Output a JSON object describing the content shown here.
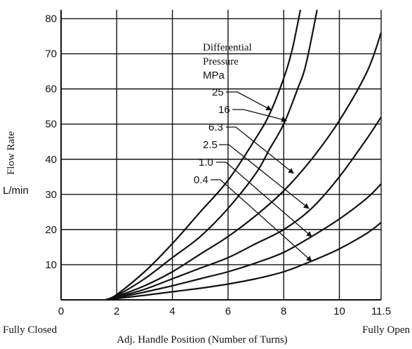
{
  "chart_data": {
    "type": "line",
    "xlabel": "Adj. Handle Position (Number of Turns)",
    "ylabel": "Flow Rate",
    "yunit": "L/min",
    "xlim": [
      0,
      11.5
    ],
    "ylim": [
      0,
      82
    ],
    "x_ticks": [
      "0",
      "2",
      "4",
      "6",
      "8",
      "10",
      "11.5"
    ],
    "y_ticks": [
      "10",
      "20",
      "30",
      "40",
      "50",
      "60",
      "70",
      "80"
    ],
    "x_tick_values": [
      0,
      2,
      4,
      6,
      8,
      10,
      11.5
    ],
    "y_tick_values": [
      10,
      20,
      30,
      40,
      50,
      60,
      70,
      80
    ],
    "grid": true,
    "x_end_labels": {
      "left": "Fully Closed",
      "right": "Fully Open"
    },
    "legend_title": [
      "Differential",
      "Pressure",
      "MPa"
    ],
    "series": [
      {
        "name": "25",
        "x": [
          1.6,
          2,
          3,
          4,
          5,
          6,
          7,
          7.5,
          8,
          8.3,
          8.6
        ],
        "y": [
          0,
          1.5,
          8,
          16,
          25,
          34,
          46,
          53,
          63,
          71,
          82.5
        ]
      },
      {
        "name": "16",
        "x": [
          1.6,
          2,
          3,
          4,
          5,
          6,
          7,
          7.5,
          8,
          8.5,
          8.8,
          9.2
        ],
        "y": [
          0,
          1.2,
          6,
          12,
          18,
          26,
          36,
          43,
          50,
          60,
          67,
          82.5
        ]
      },
      {
        "name": "6.3",
        "x": [
          1.6,
          2,
          3,
          4,
          5,
          6,
          7,
          8,
          9,
          10,
          11,
          11.5
        ],
        "y": [
          0,
          1,
          4,
          8,
          13,
          18,
          24,
          31,
          40,
          51,
          65,
          76
        ]
      },
      {
        "name": "2.5",
        "x": [
          1.6,
          2,
          3,
          4,
          5,
          6,
          7,
          8,
          9,
          10,
          11,
          11.5
        ],
        "y": [
          0,
          0.8,
          3,
          6,
          9,
          12,
          16,
          20,
          26,
          35,
          46,
          52
        ]
      },
      {
        "name": "1.0",
        "x": [
          1.6,
          2,
          3,
          4,
          5,
          6,
          7,
          8,
          9,
          10,
          11,
          11.5
        ],
        "y": [
          0,
          0.6,
          2.2,
          4,
          6,
          8,
          10.5,
          13.5,
          18,
          23,
          29,
          33
        ]
      },
      {
        "name": "0.4",
        "x": [
          1.6,
          2,
          3,
          4,
          5,
          6,
          7,
          8,
          9,
          10,
          11,
          11.5
        ],
        "y": [
          0,
          0.4,
          1.3,
          2.3,
          3.3,
          4.5,
          6,
          8,
          11,
          14.5,
          19,
          22
        ]
      }
    ]
  }
}
